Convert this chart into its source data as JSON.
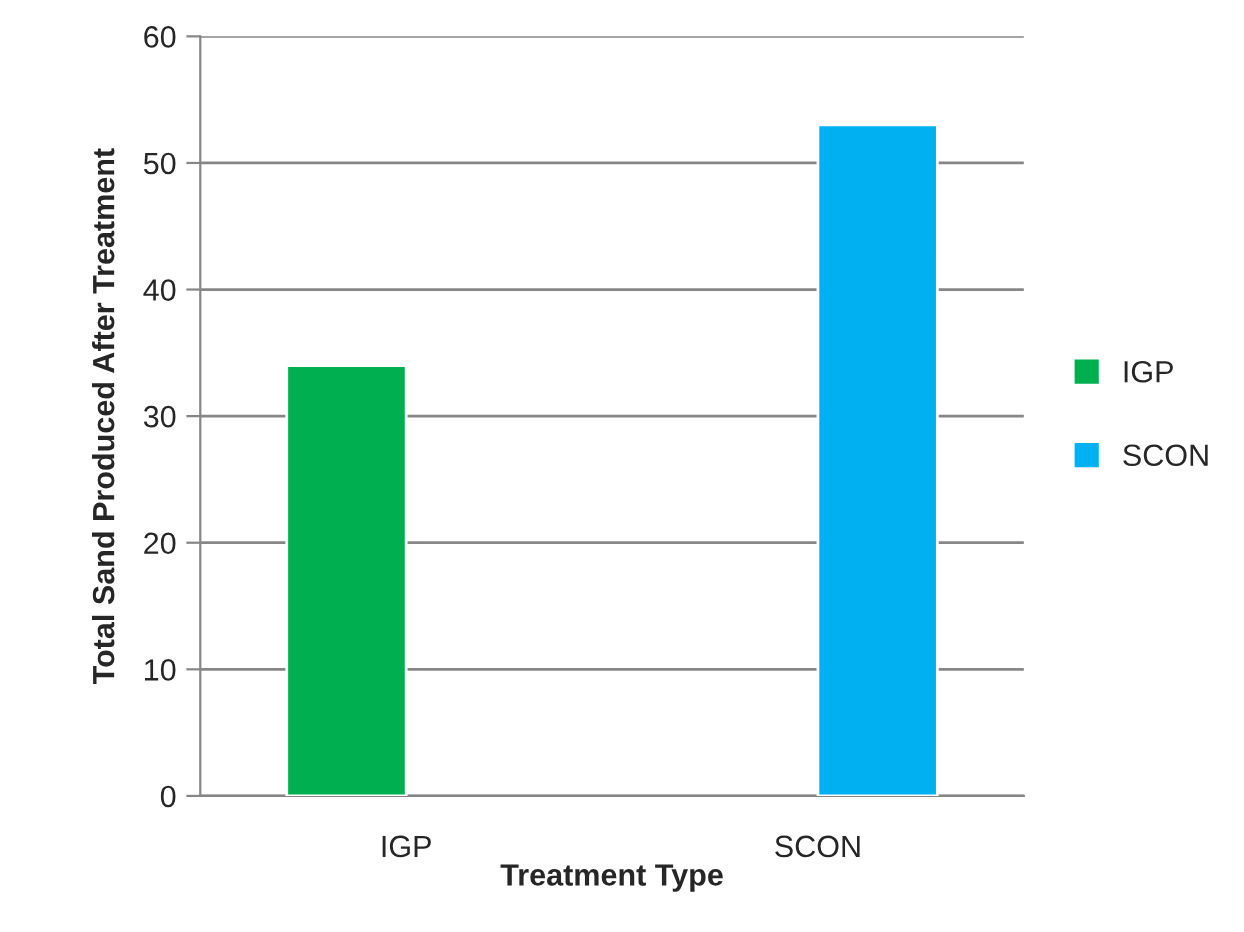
{
  "chart_data": {
    "type": "bar",
    "xlabel": "Treatment Type",
    "ylabel": "Total Sand Produced After Treatment",
    "categories": [
      "IGP",
      "SCON"
    ],
    "series": [
      {
        "name": "IGP",
        "color": "#00b050",
        "values": [
          34,
          null
        ]
      },
      {
        "name": "SCON",
        "color": "#00b0f0",
        "values": [
          null,
          53
        ]
      }
    ],
    "ylim": [
      0,
      60
    ],
    "yticks": [
      0,
      10,
      20,
      30,
      40,
      50,
      60
    ],
    "grid": "y",
    "legend": "right"
  }
}
